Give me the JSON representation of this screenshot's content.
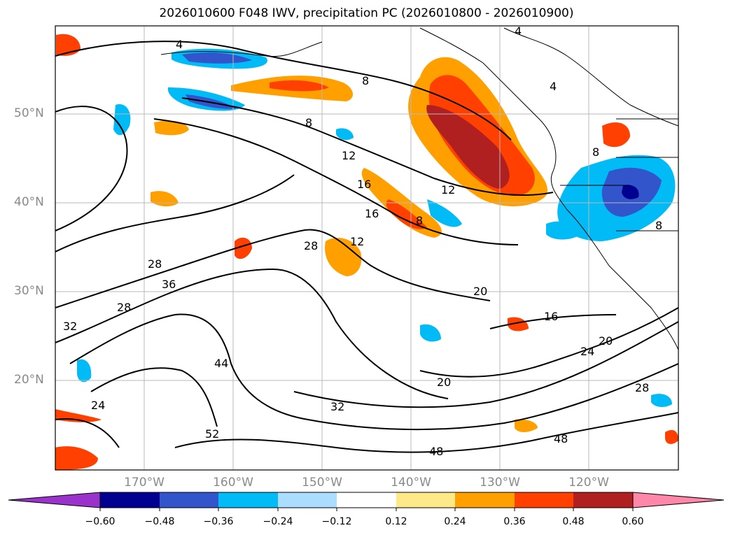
{
  "title": "2026010600 F048 IWV, precipitation PC (2026010800 - 2026010900)",
  "map": {
    "lat_labels": [
      "50°N",
      "40°N",
      "30°N",
      "20°N"
    ],
    "lon_labels": [
      "170°W",
      "160°W",
      "150°W",
      "140°W",
      "130°W",
      "120°W"
    ],
    "contour_labels": [
      "4",
      "4",
      "4",
      "8",
      "8",
      "8",
      "8",
      "8",
      "12",
      "12",
      "12",
      "16",
      "16",
      "16",
      "20",
      "20",
      "20",
      "24",
      "24",
      "28",
      "28",
      "28",
      "28",
      "32",
      "32",
      "36",
      "44",
      "48",
      "48",
      "52"
    ]
  },
  "colorbar": {
    "ticks": [
      "−0.60",
      "−0.48",
      "−0.36",
      "−0.24",
      "−0.12",
      "0.12",
      "0.24",
      "0.36",
      "0.48",
      "0.60"
    ],
    "colors": [
      "#9933cc",
      "#000090",
      "#3355cc",
      "#00bbf5",
      "#aaddff",
      "#ffffff",
      "#ffe888",
      "#ffa000",
      "#ff4000",
      "#b02020",
      "#ff88aa"
    ]
  }
}
